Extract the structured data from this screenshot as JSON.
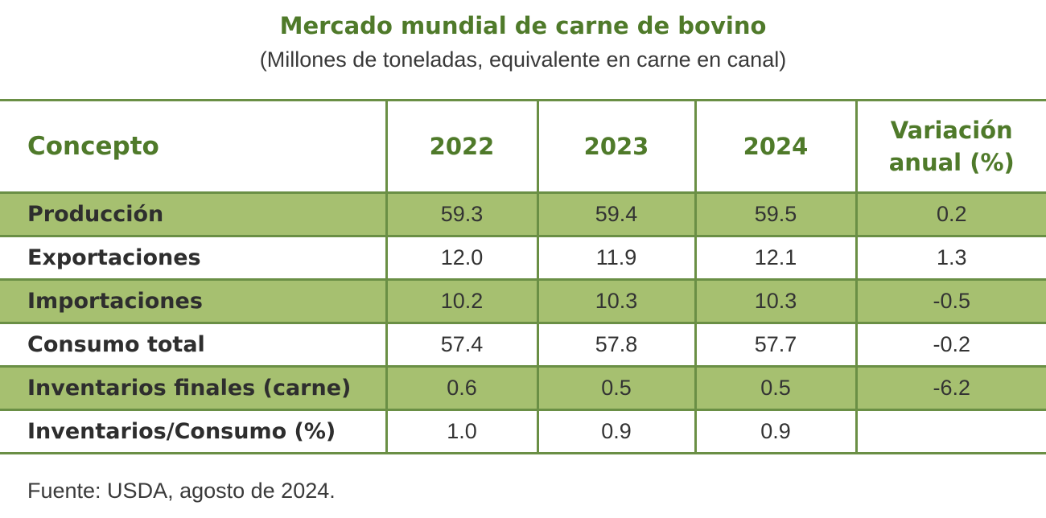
{
  "title": "Mercado mundial de carne de bovino",
  "subtitle": "(Millones de toneladas, equivalente en carne en canal)",
  "table": {
    "headers": [
      "Concepto",
      "2022",
      "2023",
      "2024",
      "Variación anual (%)"
    ],
    "rows": [
      {
        "concepto": "Producción",
        "y2022": "59.3",
        "y2023": "59.4",
        "y2024": "59.5",
        "variacion": "0.2"
      },
      {
        "concepto": "Exportaciones",
        "y2022": "12.0",
        "y2023": "11.9",
        "y2024": "12.1",
        "variacion": "1.3"
      },
      {
        "concepto": "Importaciones",
        "y2022": "10.2",
        "y2023": "10.3",
        "y2024": "10.3",
        "variacion": "-0.5"
      },
      {
        "concepto": "Consumo total",
        "y2022": "57.4",
        "y2023": "57.8",
        "y2024": "57.7",
        "variacion": "-0.2"
      },
      {
        "concepto": "Inventarios finales (carne)",
        "y2022": "0.6",
        "y2023": "0.5",
        "y2024": "0.5",
        "variacion": "-6.2"
      },
      {
        "concepto": "Inventarios/Consumo (%)",
        "y2022": "1.0",
        "y2023": "0.9",
        "y2024": "0.9",
        "variacion": ""
      }
    ]
  },
  "source": "Fuente: USDA, agosto de 2024.",
  "colors": {
    "accent_green": "#4f7a2a",
    "row_shade": "#a6c070",
    "border": "#6a8f45"
  }
}
